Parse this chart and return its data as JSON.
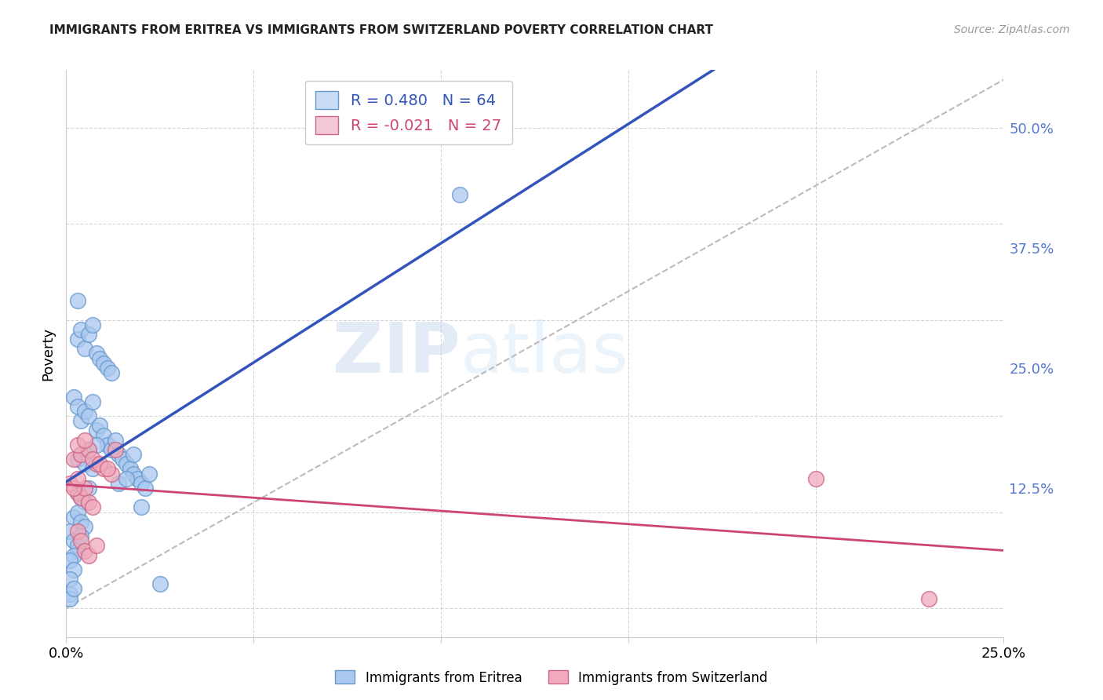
{
  "title": "IMMIGRANTS FROM ERITREA VS IMMIGRANTS FROM SWITZERLAND POVERTY CORRELATION CHART",
  "source": "Source: ZipAtlas.com",
  "xlabel": "",
  "ylabel": "Poverty",
  "xlim": [
    0.0,
    0.25
  ],
  "ylim": [
    -0.03,
    0.56
  ],
  "xtick_vals": [
    0.0,
    0.05,
    0.1,
    0.15,
    0.2,
    0.25
  ],
  "xtick_labels": [
    "0.0%",
    "",
    "",
    "",
    "",
    "25.0%"
  ],
  "ytick_labels_right": [
    "50.0%",
    "37.5%",
    "25.0%",
    "12.5%"
  ],
  "ytick_vals_right": [
    0.5,
    0.375,
    0.25,
    0.125
  ],
  "background_color": "#ffffff",
  "grid_color": "#cccccc",
  "series1_color": "#aac8f0",
  "series1_edge_color": "#6699cc",
  "series2_color": "#f0aabb",
  "series2_edge_color": "#cc6688",
  "line1_color": "#3355bb",
  "line2_color": "#cc4477",
  "ref_line_color": "#bbbbbb",
  "right_axis_color": "#5577cc",
  "R1": 0.48,
  "N1": 64,
  "R2": -0.021,
  "N2": 27,
  "legend_label1": "Immigrants from Eritrea",
  "legend_label2": "Immigrants from Switzerland",
  "watermark_zip": "ZIP",
  "watermark_atlas": "atlas",
  "series1_x": [
    0.002,
    0.003,
    0.004,
    0.005,
    0.006,
    0.007,
    0.008,
    0.009,
    0.01,
    0.011,
    0.012,
    0.013,
    0.014,
    0.015,
    0.016,
    0.017,
    0.018,
    0.019,
    0.02,
    0.021,
    0.003,
    0.004,
    0.005,
    0.006,
    0.007,
    0.008,
    0.009,
    0.01,
    0.011,
    0.012,
    0.003,
    0.004,
    0.005,
    0.006,
    0.007,
    0.008,
    0.003,
    0.004,
    0.005,
    0.006,
    0.002,
    0.003,
    0.004,
    0.005,
    0.001,
    0.002,
    0.003,
    0.003,
    0.002,
    0.004,
    0.001,
    0.002,
    0.001,
    0.014,
    0.016,
    0.022,
    0.001,
    0.001,
    0.002,
    0.018,
    0.105,
    0.025,
    0.003,
    0.02
  ],
  "series1_y": [
    0.22,
    0.21,
    0.195,
    0.205,
    0.2,
    0.215,
    0.185,
    0.19,
    0.18,
    0.17,
    0.165,
    0.175,
    0.16,
    0.155,
    0.15,
    0.145,
    0.14,
    0.135,
    0.13,
    0.125,
    0.28,
    0.29,
    0.27,
    0.285,
    0.295,
    0.265,
    0.26,
    0.255,
    0.25,
    0.245,
    0.155,
    0.16,
    0.15,
    0.165,
    0.145,
    0.17,
    0.12,
    0.115,
    0.11,
    0.125,
    0.095,
    0.1,
    0.09,
    0.085,
    0.08,
    0.07,
    0.06,
    0.065,
    0.055,
    0.075,
    0.05,
    0.04,
    0.03,
    0.13,
    0.135,
    0.14,
    0.015,
    0.01,
    0.02,
    0.16,
    0.43,
    0.025,
    0.32,
    0.105
  ],
  "series2_x": [
    0.002,
    0.004,
    0.006,
    0.008,
    0.01,
    0.012,
    0.003,
    0.005,
    0.007,
    0.009,
    0.011,
    0.013,
    0.003,
    0.004,
    0.005,
    0.006,
    0.007,
    0.001,
    0.002,
    0.003,
    0.003,
    0.004,
    0.005,
    0.006,
    0.008,
    0.2,
    0.23
  ],
  "series2_y": [
    0.155,
    0.16,
    0.165,
    0.15,
    0.145,
    0.14,
    0.17,
    0.175,
    0.155,
    0.15,
    0.145,
    0.165,
    0.12,
    0.115,
    0.125,
    0.11,
    0.105,
    0.13,
    0.125,
    0.135,
    0.08,
    0.07,
    0.06,
    0.055,
    0.065,
    0.135,
    0.01
  ]
}
